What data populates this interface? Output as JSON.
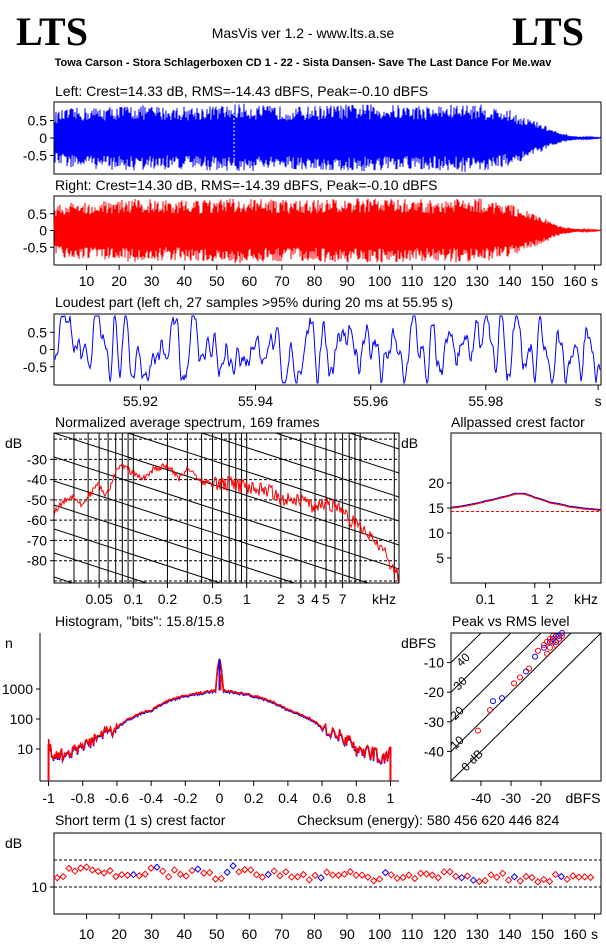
{
  "header": {
    "logo_left": "LTS",
    "logo_right": "LTS",
    "app_title": "MasVis ver 1.2 - www.lts.a.se",
    "file_name": "Towa Carson - Stora Schlagerboxen CD 1 - 22 - Sista Dansen- Save The Last Dance For Me.wav"
  },
  "panels": {
    "left_title": "Left: Crest=14.33 dB, RMS=-14.43 dBFS, Peak=-0.10 dBFS",
    "right_title": "Right: Crest=14.30 dB, RMS=-14.39 dBFS, Peak=-0.10 dBFS",
    "loudest_title": "Loudest part (left  ch, 27 samples >95% during 20 ms at 55.95 s)",
    "spectrum_title": "Normalized average spectrum, 169 frames",
    "allpass_title": "Allpassed crest factor",
    "histogram_title": "Histogram, \"bits\": 15.8/15.8",
    "peakrms_title": "Peak vs RMS level",
    "crest_title": "Short term (1 s) crest factor",
    "checksum": "Checksum (energy):   580 456 620 446 824"
  },
  "colors": {
    "left": "#0000ff",
    "right": "#ff0000",
    "grid": "#000000"
  },
  "chart_data": [
    {
      "type": "area",
      "name": "left_waveform",
      "title": "Left: Crest=14.33 dB, RMS=-14.43 dBFS, Peak=-0.10 dBFS",
      "yticks": [
        "0.5",
        "0",
        "-0.5"
      ],
      "ylim": [
        -1,
        1
      ],
      "xlim": [
        0,
        168
      ],
      "series": [
        {
          "envelope_x": [
            0,
            5,
            15,
            25,
            35,
            45,
            55,
            56,
            65,
            75,
            85,
            95,
            105,
            115,
            125,
            130,
            140,
            150,
            155,
            160,
            165,
            168
          ],
          "envelope_amp": [
            0.75,
            0.85,
            0.9,
            0.95,
            0.9,
            0.92,
            0.95,
            1.0,
            0.93,
            0.9,
            0.95,
            0.97,
            0.95,
            0.93,
            0.97,
            0.98,
            0.8,
            0.4,
            0.15,
            0.05,
            0.02,
            0.01
          ]
        }
      ]
    },
    {
      "type": "area",
      "name": "right_waveform",
      "title": "Right: Crest=14.30 dB, RMS=-14.39 dBFS, Peak=-0.10 dBFS",
      "yticks": [
        "0.5",
        "0",
        "-0.5"
      ],
      "ylim": [
        -1,
        1
      ],
      "xticks": [
        "10",
        "20",
        "30",
        "40",
        "50",
        "60",
        "70",
        "80",
        "90",
        "100",
        "110",
        "120",
        "130",
        "140",
        "150",
        "160",
        "s"
      ],
      "xlim": [
        0,
        168
      ],
      "series": [
        {
          "envelope_x": [
            0,
            5,
            15,
            25,
            35,
            45,
            55,
            56,
            65,
            75,
            85,
            95,
            105,
            115,
            125,
            130,
            140,
            150,
            155,
            160,
            165,
            168
          ],
          "envelope_amp": [
            0.75,
            0.85,
            0.9,
            0.95,
            0.9,
            0.92,
            0.95,
            1.0,
            0.93,
            0.9,
            0.95,
            0.97,
            0.95,
            0.93,
            0.97,
            0.98,
            0.8,
            0.4,
            0.15,
            0.05,
            0.02,
            0.01
          ]
        }
      ]
    },
    {
      "type": "line",
      "name": "loudest_part",
      "yticks": [
        "0.5",
        "0",
        "-0.5"
      ],
      "ylim": [
        -1,
        1
      ],
      "xticks": [
        "55.92",
        "55.94",
        "55.96",
        "55.98",
        "s"
      ],
      "xlim": [
        55.905,
        56.0
      ]
    },
    {
      "type": "line",
      "name": "spectrum",
      "ylabel": "dB",
      "yticks": [
        "-30",
        "-40",
        "-50",
        "-60",
        "-70",
        "-80"
      ],
      "ylim": [
        -91,
        -17
      ],
      "xticks": [
        "0.05",
        "0.1",
        "0.2",
        "0.5",
        "1",
        "2",
        "3",
        "4",
        "5",
        "7",
        "kHz"
      ],
      "xlim_khz": [
        0.02,
        22
      ],
      "series": [
        {
          "f_khz": [
            0.02,
            0.025,
            0.03,
            0.035,
            0.04,
            0.05,
            0.055,
            0.06,
            0.07,
            0.08,
            0.1,
            0.12,
            0.15,
            0.2,
            0.25,
            0.3,
            0.4,
            0.5,
            0.7,
            1.0,
            1.5,
            2.0,
            3.0,
            4.0,
            5.0,
            6.0,
            7.0,
            8.0,
            10.0,
            12.0,
            15.0,
            18.0,
            22.0
          ],
          "db": [
            -56,
            -50,
            -48,
            -53,
            -48,
            -42,
            -48,
            -46,
            -36,
            -33,
            -37,
            -40,
            -35,
            -33,
            -40,
            -34,
            -41,
            -42,
            -42,
            -44,
            -45,
            -49,
            -50,
            -54,
            -52,
            -53,
            -56,
            -60,
            -63,
            -68,
            -72,
            -80,
            -88
          ]
        }
      ]
    },
    {
      "type": "line",
      "name": "allpassed_crest",
      "ylabel": "dB",
      "yticks": [
        "20",
        "15",
        "10",
        "5"
      ],
      "ylim": [
        0,
        30
      ],
      "xticks": [
        "0.1",
        "1",
        "2",
        "kHz"
      ],
      "xlim_khz": [
        0.02,
        22
      ],
      "reference_db": 14.3,
      "series": [
        {
          "f_khz": [
            0.02,
            0.05,
            0.1,
            0.2,
            0.4,
            0.6,
            1.0,
            2.0,
            5.0,
            10.0,
            22.0
          ],
          "db": [
            15.0,
            15.6,
            16.3,
            17.0,
            17.8,
            17.8,
            17.0,
            16.0,
            15.2,
            14.8,
            14.5
          ]
        }
      ]
    },
    {
      "type": "area",
      "name": "histogram",
      "ylabel": "n",
      "yticks": [
        "1000",
        "100",
        "10"
      ],
      "xticks": [
        "-1",
        "-0.8",
        "-0.6",
        "-0.4",
        "-0.2",
        "0",
        "0.2",
        "0.4",
        "0.6",
        "0.8",
        "1"
      ],
      "xlim": [
        -1.05,
        1.05
      ],
      "series": [
        {
          "x": [
            -1,
            -0.98,
            -0.9,
            -0.8,
            -0.6,
            -0.4,
            -0.2,
            -0.02,
            0,
            0.02,
            0.2,
            0.4,
            0.6,
            0.8,
            0.9,
            0.98,
            1
          ],
          "count": [
            15,
            5,
            7,
            10,
            50,
            200,
            600,
            900,
            10000,
            900,
            600,
            200,
            50,
            10,
            7,
            5,
            12
          ]
        }
      ]
    },
    {
      "type": "scatter",
      "name": "peak_vs_rms",
      "ylabel": "dBFS",
      "yticks": [
        "-10",
        "-20",
        "-30",
        "-40"
      ],
      "ylim": [
        -50,
        0
      ],
      "xticks": [
        "-40",
        "-30",
        "-20",
        "dBFS"
      ],
      "xlim": [
        -50,
        0
      ],
      "crest_line_labels": [
        "40",
        "30",
        "20",
        "10",
        "0 dB"
      ],
      "series": [
        {
          "name": "left",
          "points": [
            [
              -36,
              -23
            ],
            [
              -33,
              -22
            ],
            [
              -25,
              -13
            ],
            [
              -22,
              -8
            ],
            [
              -19,
              -5
            ],
            [
              -17,
              -3
            ],
            [
              -16,
              -2
            ],
            [
              -15,
              -1
            ],
            [
              -14,
              -1
            ],
            [
              -13,
              0
            ],
            [
              -15,
              -3
            ],
            [
              -14,
              -2
            ]
          ]
        },
        {
          "name": "right",
          "points": [
            [
              -41,
              -33
            ],
            [
              -37,
              -26
            ],
            [
              -29,
              -17
            ],
            [
              -27,
              -15
            ],
            [
              -24,
              -12
            ],
            [
              -21,
              -6
            ],
            [
              -19,
              -4
            ],
            [
              -18,
              -3
            ],
            [
              -17,
              -5
            ],
            [
              -16,
              -1
            ],
            [
              -15,
              -4
            ],
            [
              -14,
              -2
            ],
            [
              -13,
              -1
            ],
            [
              -16,
              -3
            ],
            [
              -18,
              -7
            ],
            [
              -17,
              -2
            ]
          ]
        }
      ]
    },
    {
      "type": "scatter",
      "name": "short_term_crest",
      "ylabel": "dB",
      "yticks": [
        "10"
      ],
      "ylim": [
        5,
        20
      ],
      "reference_lines": [
        10,
        15
      ],
      "xticks": [
        "10",
        "20",
        "30",
        "40",
        "50",
        "60",
        "70",
        "80",
        "90",
        "100",
        "110",
        "120",
        "130",
        "140",
        "150",
        "160",
        "s"
      ],
      "xlim": [
        0,
        168
      ],
      "series": [
        {
          "t": [
            2,
            8,
            14,
            20,
            26,
            32,
            38,
            44,
            50,
            56,
            62,
            68,
            74,
            80,
            86,
            92,
            98,
            104,
            110,
            116,
            122,
            128,
            134,
            140,
            146,
            152,
            158,
            164
          ],
          "db": [
            12.5,
            13.0,
            12.8,
            12.0,
            12.5,
            13.0,
            12.3,
            12.7,
            12.0,
            13.5,
            12.4,
            12.8,
            12.2,
            12.0,
            12.6,
            12.9,
            11.5,
            12.3,
            11.8,
            12.1,
            12.4,
            11.9,
            11.6,
            12.0,
            11.8,
            11.5,
            11.9,
            11.7
          ]
        }
      ]
    }
  ]
}
